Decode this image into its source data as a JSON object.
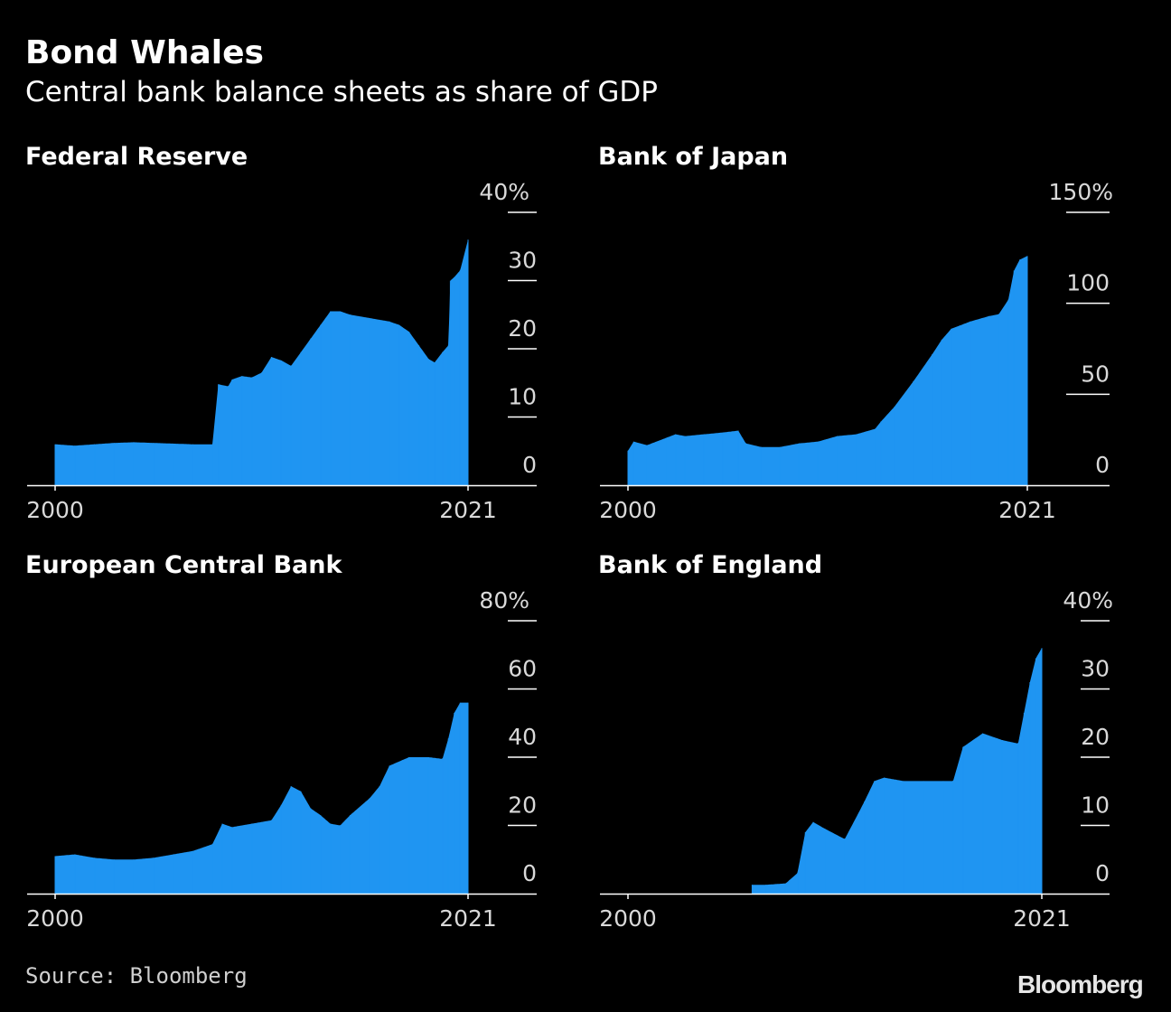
{
  "header": {
    "title": "Bond Whales",
    "subtitle": "Central bank balance sheets as share of GDP"
  },
  "footer": {
    "source": "Source: Bloomberg",
    "brand": "Bloomberg"
  },
  "colors": {
    "bar": "#1f95f2",
    "axis": "#ffffff",
    "background": "#000000"
  },
  "chart_data": [
    {
      "type": "area",
      "title": "Federal Reserve",
      "unit": "% of GDP",
      "x_start": 2000,
      "x_end": 2021,
      "x_tick_labels": [
        "2000",
        "2021"
      ],
      "ylim": [
        0,
        40
      ],
      "y_tick_labels": [
        "40%",
        "30",
        "20",
        "10",
        "0"
      ],
      "y_tick_values": [
        40,
        30,
        20,
        10,
        0
      ],
      "x": [
        2000,
        2001,
        2002,
        2003,
        2004,
        2005,
        2006,
        2007,
        2008,
        2008.3,
        2008.8,
        2009,
        2009.5,
        2010,
        2010.5,
        2011,
        2011.5,
        2012,
        2012.5,
        2013,
        2013.5,
        2014,
        2014.5,
        2015,
        2016,
        2017,
        2017.5,
        2018,
        2018.5,
        2019,
        2019.3,
        2019.7,
        2020.0,
        2020.1,
        2020.3,
        2020.6,
        2021
      ],
      "values": [
        6,
        5.8,
        6,
        6.2,
        6.3,
        6.2,
        6.1,
        6.0,
        6.0,
        14.8,
        14.5,
        15.5,
        16.0,
        15.8,
        16.5,
        18.8,
        18.3,
        17.5,
        19.5,
        21.5,
        23.5,
        25.5,
        25.5,
        25.0,
        24.5,
        24.0,
        23.5,
        22.5,
        20.5,
        18.5,
        18.0,
        19.5,
        20.5,
        30.0,
        30.5,
        31.5,
        36.0
      ]
    },
    {
      "type": "area",
      "title": "Bank of Japan",
      "unit": "% of GDP",
      "x_start": 2000,
      "x_end": 2021,
      "x_tick_labels": [
        "2000",
        "2021"
      ],
      "ylim": [
        0,
        150
      ],
      "y_tick_labels": [
        "150%",
        "100",
        "50",
        "0"
      ],
      "y_tick_values": [
        150,
        100,
        50,
        0
      ],
      "x": [
        2000,
        2000.3,
        2001,
        2002,
        2002.5,
        2003,
        2004,
        2005,
        2005.8,
        2006.2,
        2007,
        2008,
        2009,
        2010,
        2011,
        2012,
        2013,
        2013.3,
        2014,
        2015,
        2016,
        2016.5,
        2017,
        2018,
        2019,
        2019.5,
        2020,
        2020.3,
        2020.6,
        2021
      ],
      "values": [
        19,
        24,
        22,
        26,
        28,
        27,
        28,
        29,
        30,
        23,
        21,
        21,
        23,
        24,
        27,
        28,
        31,
        35,
        43,
        57,
        72,
        80,
        86,
        90,
        93,
        94,
        102,
        118,
        124,
        126
      ]
    },
    {
      "type": "area",
      "title": "European Central Bank",
      "unit": "% of GDP",
      "x_start": 2000,
      "x_end": 2021,
      "x_tick_labels": [
        "2000",
        "2021"
      ],
      "ylim": [
        0,
        80
      ],
      "y_tick_labels": [
        "80%",
        "60",
        "40",
        "20",
        "0"
      ],
      "y_tick_values": [
        80,
        60,
        40,
        20,
        0
      ],
      "x": [
        2000,
        2001,
        2002,
        2003,
        2004,
        2005,
        2006,
        2007,
        2008,
        2008.5,
        2009,
        2010,
        2011,
        2011.5,
        2012,
        2012.5,
        2013,
        2013.5,
        2014,
        2014.5,
        2015,
        2016,
        2016.5,
        2017,
        2018,
        2019,
        2019.7,
        2020,
        2020.3,
        2020.6,
        2021
      ],
      "values": [
        11,
        11.5,
        10.5,
        10,
        10,
        10.5,
        11.5,
        12.5,
        14.5,
        20.5,
        19.5,
        20.5,
        21.5,
        26,
        31.5,
        30,
        25,
        23,
        20.5,
        20,
        23,
        28,
        31.5,
        37.5,
        40,
        40,
        39.5,
        45.5,
        53,
        56,
        56
      ]
    },
    {
      "type": "area",
      "title": "Bank of England",
      "unit": "% of GDP",
      "x_start": 2000,
      "x_end": 2021,
      "x_tick_labels": [
        "2000",
        "2021"
      ],
      "ylim": [
        0,
        40
      ],
      "y_tick_labels": [
        "40%",
        "30",
        "20",
        "10",
        "0"
      ],
      "y_tick_values": [
        40,
        30,
        20,
        10,
        0
      ],
      "x": [
        2006.3,
        2007,
        2008,
        2008.6,
        2009,
        2009.4,
        2010,
        2011,
        2012,
        2012.5,
        2013,
        2014,
        2015,
        2016,
        2016.5,
        2017,
        2018,
        2019,
        2019.8,
        2020.1,
        2020.4,
        2020.7,
        2021
      ],
      "values": [
        1.3,
        1.3,
        1.5,
        3.0,
        9.0,
        10.5,
        9.5,
        8.0,
        13.5,
        16.5,
        17.0,
        16.5,
        16.5,
        16.5,
        16.5,
        21.5,
        23.5,
        22.5,
        22.0,
        26.5,
        31.0,
        34.5,
        36.0
      ]
    }
  ]
}
